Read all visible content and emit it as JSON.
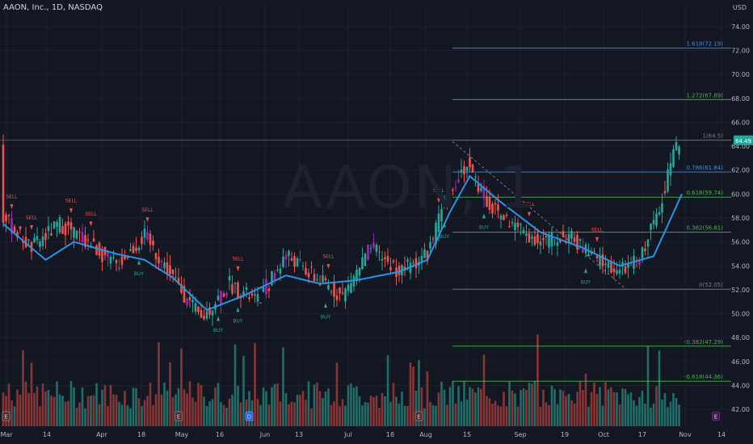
{
  "header": {
    "ticker_text": "AAON, Inc., 1D, NASDAQ",
    "currency": "USD",
    "watermark": "AAON, 1"
  },
  "colors": {
    "background": "#131722",
    "up": "#26a69a",
    "down": "#ef5350",
    "purple": "#9c27b0",
    "ma": "#2a93e8",
    "fib_blue": "#2a93e8",
    "fib_green": "#4caf50",
    "fib_gray": "#787b86",
    "volume_up": "#1f6e68",
    "volume_down": "#8a3535",
    "last_price_bg": "#26a69a"
  },
  "chart_data": {
    "type": "candlestick",
    "title": "AAON, Inc., 1D, NASDAQ",
    "y_axis": {
      "unit": "USD",
      "ticks": [
        "74.00",
        "72.00",
        "70.00",
        "68.00",
        "66.00",
        "64.00",
        "62.00",
        "60.00",
        "58.00",
        "56.00",
        "54.00",
        "52.00",
        "50.00",
        "48.00",
        "46.00",
        "44.00",
        "42.00"
      ],
      "range": [
        41,
        75
      ]
    },
    "x_axis": {
      "ticks": [
        "Mar",
        "14",
        "Apr",
        "18",
        "May",
        "16",
        "Jun",
        "13",
        "Jul",
        "18",
        "Aug",
        "15",
        "Sep",
        "19",
        "Oct",
        "17",
        "Nov",
        "14"
      ]
    },
    "last_price": {
      "label": "64.49",
      "value": 64.49
    },
    "fib_levels": [
      {
        "label": "1.618(72.19)",
        "value": 72.19,
        "color": "blue"
      },
      {
        "label": "1.272(67.89)",
        "value": 67.89,
        "color": "green"
      },
      {
        "label": "1(64.5)",
        "value": 64.5,
        "color": "gray"
      },
      {
        "label": "0.786(61.84)",
        "value": 61.84,
        "color": "blue"
      },
      {
        "label": "0.618(59.74)",
        "value": 59.74,
        "color": "green"
      },
      {
        "label": "0.382(56.81)",
        "value": 56.81,
        "color": "green"
      },
      {
        "label": "0(52.05)",
        "value": 52.05,
        "color": "gray"
      },
      {
        "label": "-0.382(47.29)",
        "value": 47.29,
        "color": "green"
      },
      {
        "label": "-0.618(44.36)",
        "value": 44.36,
        "color": "green"
      }
    ],
    "close_anchors": [
      [
        0,
        58.0
      ],
      [
        10,
        55.5
      ],
      [
        20,
        57.5
      ],
      [
        30,
        56.0
      ],
      [
        40,
        54.0
      ],
      [
        50,
        56.5
      ],
      [
        60,
        53.0
      ],
      [
        70,
        49.5
      ],
      [
        80,
        52.5
      ],
      [
        90,
        51.0
      ],
      [
        100,
        55.0
      ],
      [
        110,
        53.0
      ],
      [
        120,
        51.5
      ],
      [
        130,
        55.5
      ],
      [
        140,
        53.5
      ],
      [
        150,
        55.0
      ],
      [
        158,
        60.5
      ],
      [
        164,
        62.5
      ],
      [
        172,
        59.0
      ],
      [
        180,
        57.5
      ],
      [
        190,
        56.0
      ],
      [
        200,
        56.5
      ],
      [
        210,
        54.5
      ],
      [
        218,
        53.5
      ],
      [
        225,
        54.5
      ],
      [
        232,
        59.0
      ],
      [
        236,
        62.5
      ],
      [
        239,
        64.4
      ]
    ],
    "ma_anchors": [
      [
        0,
        57.5
      ],
      [
        15,
        54.5
      ],
      [
        25,
        56.0
      ],
      [
        40,
        55.0
      ],
      [
        50,
        54.5
      ],
      [
        60,
        53.0
      ],
      [
        72,
        50.3
      ],
      [
        85,
        51.5
      ],
      [
        100,
        53.2
      ],
      [
        112,
        52.5
      ],
      [
        125,
        52.8
      ],
      [
        140,
        53.5
      ],
      [
        150,
        54.5
      ],
      [
        158,
        58.5
      ],
      [
        165,
        61.5
      ],
      [
        175,
        59.5
      ],
      [
        190,
        56.8
      ],
      [
        205,
        55.5
      ],
      [
        218,
        54.0
      ],
      [
        230,
        54.8
      ],
      [
        240,
        60.0
      ]
    ],
    "signals": [
      {
        "label": "SELL",
        "bar": 3,
        "type": "sell"
      },
      {
        "label": "SELL",
        "bar": 10,
        "type": "sell"
      },
      {
        "label": "SELL",
        "bar": 24,
        "type": "sell"
      },
      {
        "label": "SELL",
        "bar": 31,
        "type": "sell"
      },
      {
        "label": "SELL",
        "bar": 51,
        "type": "sell"
      },
      {
        "label": "SELL",
        "bar": 83,
        "type": "sell"
      },
      {
        "label": "SELL",
        "bar": 115,
        "type": "sell"
      },
      {
        "label": "SELL",
        "bar": 154,
        "type": "sell"
      },
      {
        "label": "SELL",
        "bar": 186,
        "type": "sell"
      },
      {
        "label": "SELL",
        "bar": 210,
        "type": "sell"
      },
      {
        "label": "BUY",
        "bar": 48,
        "type": "buy"
      },
      {
        "label": "BUY",
        "bar": 76,
        "type": "buy"
      },
      {
        "label": "BUY",
        "bar": 83,
        "type": "buy"
      },
      {
        "label": "BUY",
        "bar": 114,
        "type": "buy"
      },
      {
        "label": "BUY",
        "bar": 156,
        "type": "buy"
      },
      {
        "label": "BUY",
        "bar": 170,
        "type": "buy"
      },
      {
        "label": "BUY",
        "bar": 206,
        "type": "buy"
      }
    ],
    "event_badges": [
      {
        "label": "E",
        "bar": 1,
        "kind": "earnings"
      },
      {
        "label": "E",
        "bar": 62,
        "kind": "earnings"
      },
      {
        "label": "D",
        "bar": 87,
        "kind": "dividend"
      },
      {
        "label": "E",
        "bar": 147,
        "kind": "earnings"
      },
      {
        "label": "E",
        "bar": 252,
        "kind": "earnings-upcoming"
      }
    ],
    "grid": true,
    "legend": "none"
  }
}
